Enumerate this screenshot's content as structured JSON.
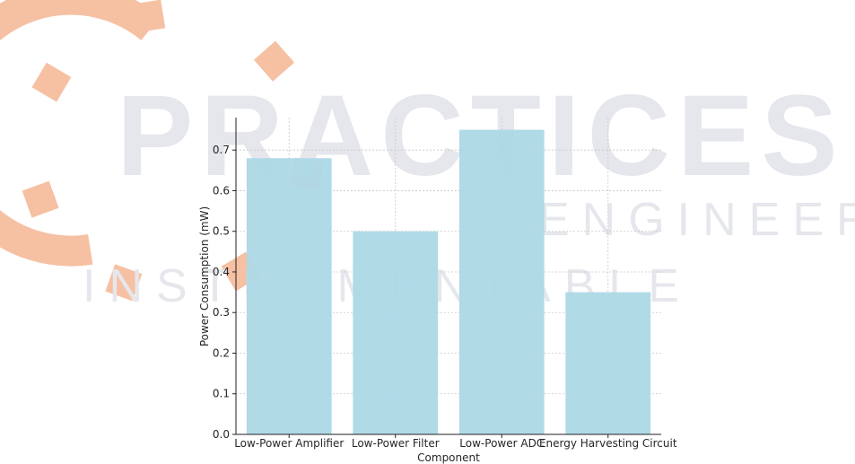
{
  "watermark": {
    "word_main": "PRACTICES",
    "word_row2": "ENGINEERING",
    "word_row3": "INSTRUMENTABLE",
    "gear_color": "#f6c0a3",
    "text_color": "#e6e7ec"
  },
  "chart_data": {
    "type": "bar",
    "categories": [
      "Low-Power Amplifier",
      "Low-Power Filter",
      "Low-Power ADC",
      "Energy Harvesting Circuit"
    ],
    "values": [
      0.68,
      0.5,
      0.75,
      0.35
    ],
    "title": "",
    "xlabel": "Component",
    "ylabel": "Power Consumption (mW)",
    "ylim": [
      0,
      0.78
    ],
    "yticks": [
      "0.0",
      "0.1",
      "0.2",
      "0.3",
      "0.4",
      "0.5",
      "0.6",
      "0.7"
    ],
    "grid": true,
    "bar_color": "#add8e6",
    "grid_color": "#c8c8c8"
  }
}
